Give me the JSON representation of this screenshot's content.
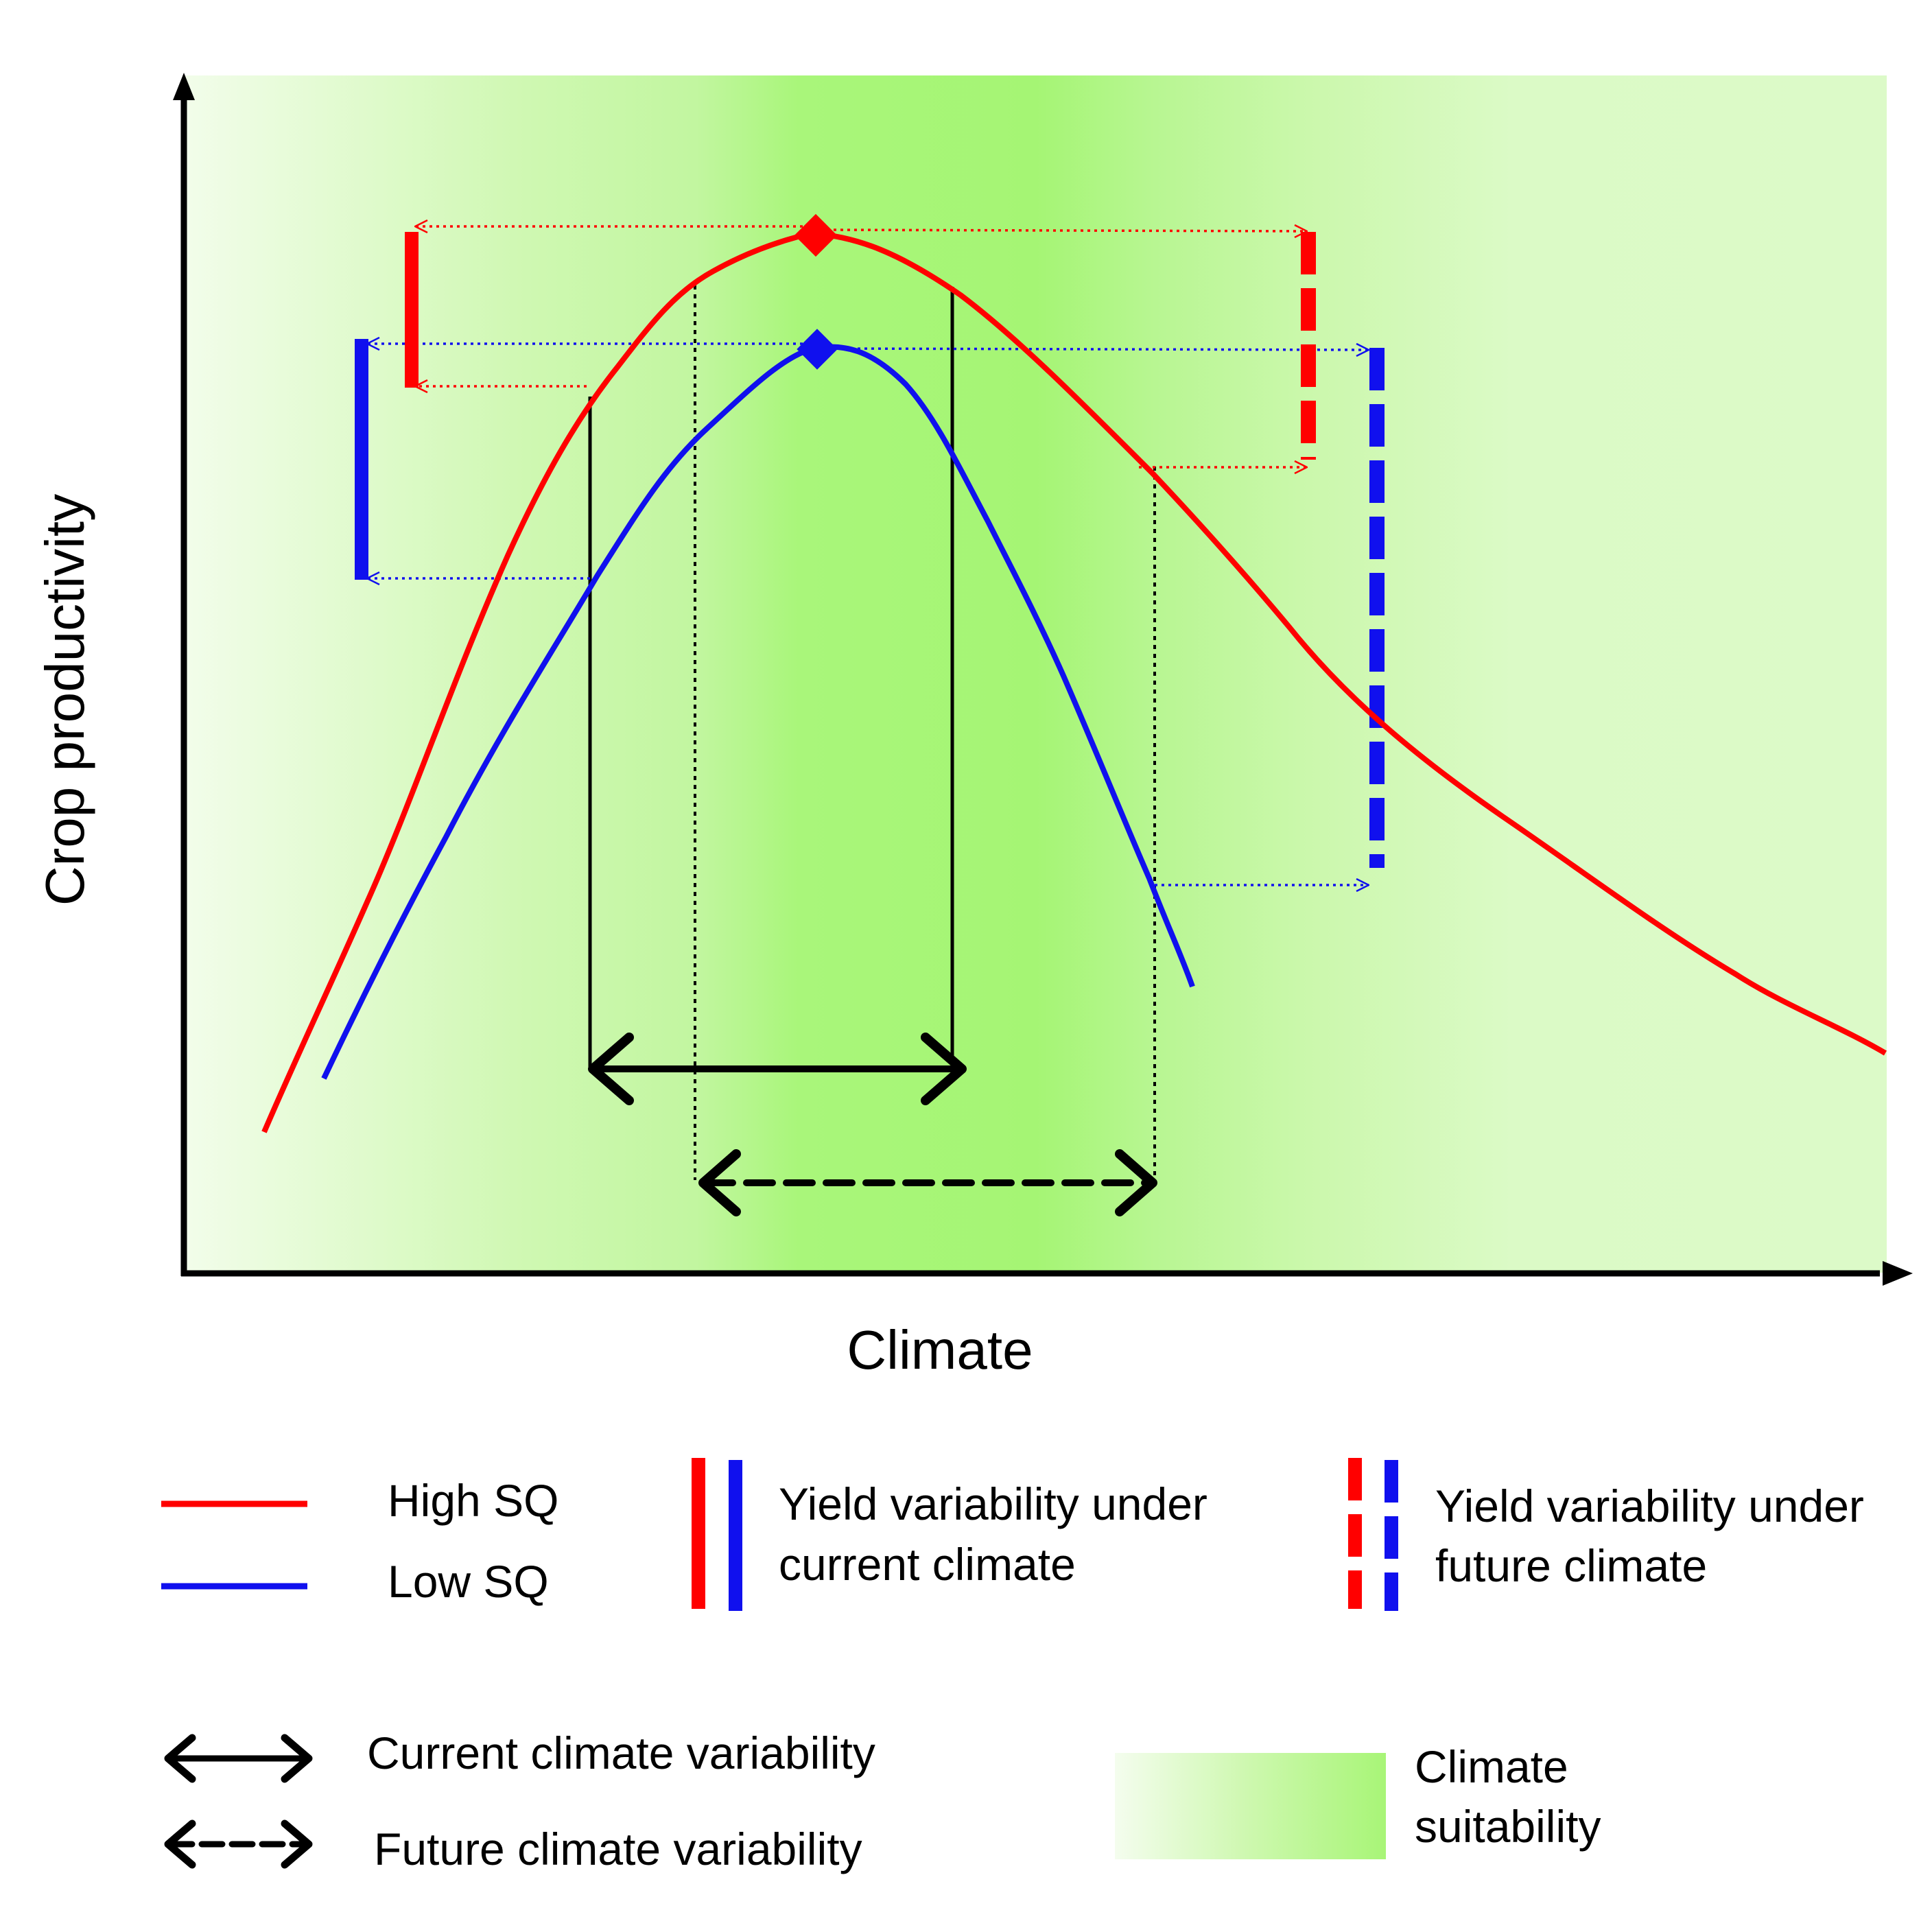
{
  "axes": {
    "x_label": "Climate",
    "y_label": "Crop productivity"
  },
  "colors": {
    "high_sq": "#ff0000",
    "low_sq": "#1010ee",
    "axis": "#000000",
    "suitability_light": "#f2fdea",
    "suitability_mid": "#d4f8b8",
    "suitability_dark": "#a6f575"
  },
  "legend": {
    "high_sq": "High SQ",
    "low_sq": "Low SQ",
    "current_yield_line1": "Yield variability under",
    "current_yield_line2": "current climate",
    "future_yield_line1": "Yield variability under",
    "future_yield_line2": "future climate",
    "current_climate_variability": "Current climate variability",
    "future_climate_variability": "Future climate variability",
    "suitability_line1": "Climate",
    "suitability_line2": "suitability"
  }
}
